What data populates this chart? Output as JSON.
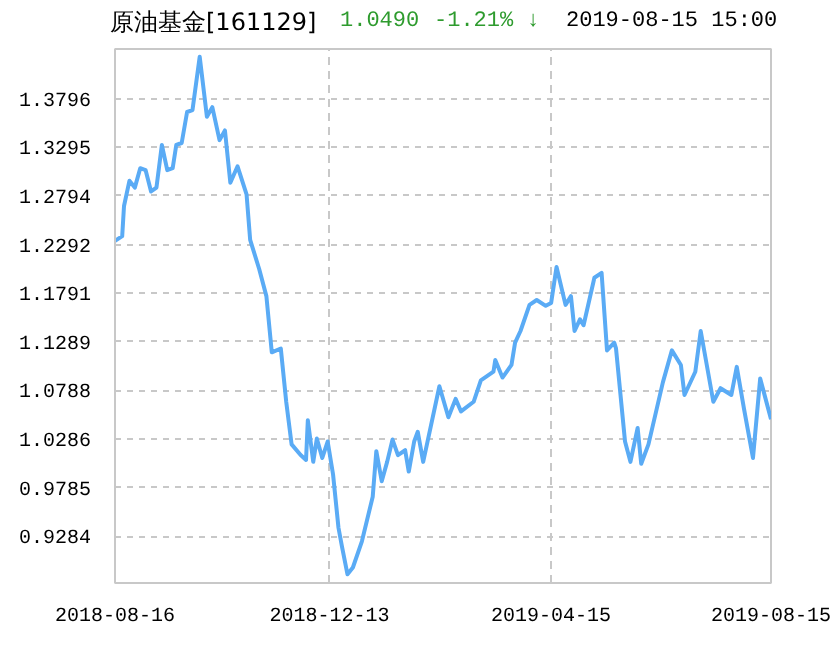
{
  "chart_data": {
    "type": "line",
    "title": "原油基金[161129]",
    "annotations": [
      "1.0490",
      "-1.21% ↓",
      "2019-08-15 15:00"
    ],
    "x": [
      "2018-08-16",
      "2018-08-20",
      "2018-08-21",
      "2018-08-24",
      "2018-08-27",
      "2018-08-30",
      "2018-09-02",
      "2018-09-05",
      "2018-09-08",
      "2018-09-11",
      "2018-09-14",
      "2018-09-17",
      "2018-09-19",
      "2018-09-22",
      "2018-09-25",
      "2018-09-28",
      "2018-10-02",
      "2018-10-06",
      "2018-10-09",
      "2018-10-13",
      "2018-10-16",
      "2018-10-19",
      "2018-10-23",
      "2018-10-28",
      "2018-10-30",
      "2018-11-04",
      "2018-11-08",
      "2018-11-11",
      "2018-11-16",
      "2018-11-19",
      "2018-11-22",
      "2018-11-27",
      "2018-11-30",
      "2018-12-01",
      "2018-12-04",
      "2018-12-06",
      "2018-12-09",
      "2018-12-12",
      "2018-12-15",
      "2018-12-18",
      "2018-12-20",
      "2018-12-23",
      "2018-12-26",
      "2018-12-31",
      "2019-01-06",
      "2019-01-08",
      "2019-01-11",
      "2019-01-14",
      "2019-01-17",
      "2019-01-20",
      "2019-01-24",
      "2019-01-26",
      "2019-01-29",
      "2019-01-31",
      "2019-02-03",
      "2019-02-12",
      "2019-02-17",
      "2019-02-21",
      "2019-02-24",
      "2019-03-03",
      "2019-03-07",
      "2019-03-14",
      "2019-03-15",
      "2019-03-19",
      "2019-03-24",
      "2019-03-26",
      "2019-03-29",
      "2019-04-03",
      "2019-04-07",
      "2019-04-12",
      "2019-04-15",
      "2019-04-18",
      "2019-04-23",
      "2019-04-26",
      "2019-04-28",
      "2019-05-01",
      "2019-05-03",
      "2019-05-09",
      "2019-05-13",
      "2019-05-16",
      "2019-05-20",
      "2019-05-21",
      "2019-05-26",
      "2019-05-29",
      "2019-06-02",
      "2019-06-04",
      "2019-06-08",
      "2019-06-16",
      "2019-06-21",
      "2019-06-26",
      "2019-06-28",
      "2019-07-04",
      "2019-07-07",
      "2019-07-14",
      "2019-07-18",
      "2019-07-24",
      "2019-07-27",
      "2019-07-31",
      "2019-08-05",
      "2019-08-09",
      "2019-08-12",
      "2019-08-15"
    ],
    "series": [
      {
        "color": "#5aabf5",
        "values": [
          1.233,
          1.238,
          1.269,
          1.295,
          1.288,
          1.308,
          1.306,
          1.284,
          1.288,
          1.332,
          1.306,
          1.308,
          1.332,
          1.334,
          1.366,
          1.368,
          1.423,
          1.361,
          1.371,
          1.337,
          1.347,
          1.293,
          1.31,
          1.281,
          1.234,
          1.204,
          1.176,
          1.118,
          1.122,
          1.067,
          1.023,
          1.012,
          1.007,
          1.048,
          1.005,
          1.029,
          1.009,
          1.026,
          0.992,
          0.937,
          0.917,
          0.889,
          0.896,
          0.923,
          0.969,
          1.016,
          0.985,
          1.005,
          1.028,
          1.012,
          1.017,
          0.995,
          1.026,
          1.036,
          1.005,
          1.083,
          1.051,
          1.07,
          1.057,
          1.067,
          1.089,
          1.098,
          1.11,
          1.092,
          1.105,
          1.128,
          1.14,
          1.167,
          1.172,
          1.166,
          1.169,
          1.206,
          1.167,
          1.176,
          1.14,
          1.152,
          1.146,
          1.195,
          1.2,
          1.12,
          1.128,
          1.122,
          1.026,
          1.005,
          1.04,
          1.003,
          1.023,
          1.087,
          1.12,
          1.105,
          1.074,
          1.098,
          1.14,
          1.067,
          1.081,
          1.074,
          1.103,
          1.06,
          1.009,
          1.091,
          1.07,
          1.049
        ]
      }
    ],
    "xlim": [
      "2018-08-16",
      "2019-08-15"
    ],
    "xticks": [
      "2018-08-16",
      "2018-12-13",
      "2019-04-15",
      "2019-08-15"
    ],
    "ylim": [
      0.88,
      1.431
    ],
    "yticks": [
      0.9284,
      0.9785,
      1.0286,
      1.0788,
      1.1289,
      1.1791,
      1.2292,
      1.2794,
      1.3295,
      1.3796
    ],
    "grid": true,
    "line_style": "solid"
  }
}
